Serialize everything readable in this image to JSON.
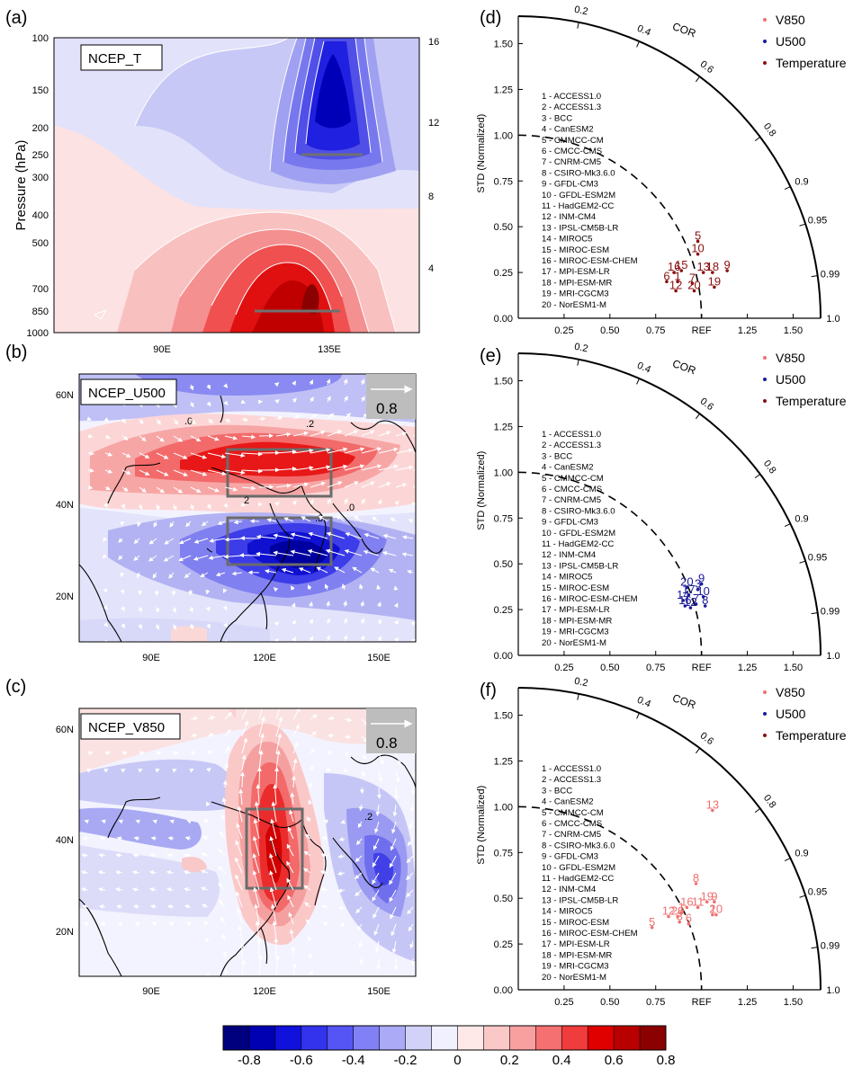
{
  "maps": [
    {
      "id": "a",
      "panel_label": "(a)",
      "label": "NCEP_T",
      "ylabel": "Pressure (hPa)",
      "xticks": [
        "90E",
        "135E"
      ],
      "yticks_left": [
        "100",
        "150",
        "200",
        "250",
        "300",
        "400",
        "500",
        "700",
        "850",
        "1000"
      ],
      "yticks_right": [
        "16",
        "12",
        "8",
        "4"
      ]
    },
    {
      "id": "b",
      "panel_label": "(b)",
      "label": "NCEP_U500",
      "ref_vector": "0.8",
      "xticks": [
        "90E",
        "120E",
        "150E"
      ],
      "yticks": [
        "60N",
        "40N",
        "20N"
      ],
      "contour_labels": [
        ".0",
        ".2",
        ".2",
        ".3",
        ".0"
      ]
    },
    {
      "id": "c",
      "panel_label": "(c)",
      "label": "NCEP_V850",
      "ref_vector": "0.8",
      "xticks": [
        "90E",
        "120E",
        "150E"
      ],
      "yticks": [
        "60N",
        "40N",
        "20N"
      ],
      "contour_labels": [
        ".2"
      ]
    }
  ],
  "chart_data": [
    {
      "type": "scatter",
      "id": "d",
      "panel_label": "(d)",
      "subtype": "taylor",
      "ylabel": "STD (Normalized)",
      "cor_label": "COR",
      "yticks": [
        "0.00",
        "0.25",
        "0.50",
        "0.75",
        "1.00",
        "1.25",
        "1.50"
      ],
      "xticks": [
        "0.25",
        "0.50",
        "0.75",
        "REF",
        "1.25",
        "1.50"
      ],
      "cor_ticks": [
        "0.2",
        "0.4",
        "0.6",
        "0.8",
        "0.9",
        "0.95",
        "0.99",
        "1.0"
      ],
      "legend": [
        "V850",
        "U500",
        "Temperature"
      ],
      "legend_colors": [
        "#f07070",
        "#1a1a9a",
        "#8b1010"
      ],
      "models": [
        "1 - ACCESS1.0",
        "2 - ACCESS1.3",
        "3 - BCC",
        "4 - CanESM2",
        "5 - CMMCC-CM",
        "6 - CMCC-CMS",
        "7 - CNRM-CM5",
        "8 - CSIRO-Mk3.6.0",
        "9 - GFDL-CM3",
        "10 - GFDL-ESM2M",
        "11 - HadGEM2-CC",
        "12 - INM-CM4",
        "13 - IPSL-CM5B-LR",
        "14 - MIROC5",
        "15 - MIROC-ESM",
        "16 - MIROC-ESM-CHEM",
        "17 - MPI-ESM-LR",
        "18 - MPI-ESM-MR",
        "19 - MRI-CGCM3",
        "20 - NorESM1-M"
      ],
      "series": [
        {
          "name": "Temperature",
          "color": "#8b1010",
          "points": [
            {
              "label": "5",
              "x": 0.98,
              "y": 0.42
            },
            {
              "label": "10",
              "x": 0.98,
              "y": 0.35
            },
            {
              "label": "15",
              "x": 0.89,
              "y": 0.26
            },
            {
              "label": "16",
              "x": 0.85,
              "y": 0.25
            },
            {
              "label": "13",
              "x": 1.01,
              "y": 0.25
            },
            {
              "label": "18",
              "x": 1.06,
              "y": 0.25
            },
            {
              "label": "9",
              "x": 1.14,
              "y": 0.26
            },
            {
              "label": "6",
              "x": 0.81,
              "y": 0.2
            },
            {
              "label": "1",
              "x": 0.87,
              "y": 0.2
            },
            {
              "label": "7",
              "x": 0.95,
              "y": 0.19
            },
            {
              "label": "12",
              "x": 0.86,
              "y": 0.15
            },
            {
              "label": "20",
              "x": 0.96,
              "y": 0.15
            },
            {
              "label": "19",
              "x": 1.07,
              "y": 0.17
            }
          ]
        }
      ]
    },
    {
      "type": "scatter",
      "id": "e",
      "panel_label": "(e)",
      "subtype": "taylor",
      "ylabel": "STD (Normalized)",
      "cor_label": "COR",
      "yticks": [
        "0.00",
        "0.25",
        "0.50",
        "0.75",
        "1.00",
        "1.25",
        "1.50"
      ],
      "xticks": [
        "0.25",
        "0.50",
        "0.75",
        "REF",
        "1.25",
        "1.50"
      ],
      "cor_ticks": [
        "0.2",
        "0.4",
        "0.6",
        "0.8",
        "0.9",
        "0.95",
        "0.99",
        "1.0"
      ],
      "legend": [
        "V850",
        "U500",
        "Temperature"
      ],
      "legend_colors": [
        "#f07070",
        "#1a1a9a",
        "#8b1010"
      ],
      "models": [
        "1 - ACCESS1.0",
        "2 - ACCESS1.3",
        "3 - BCC",
        "4 - CanESM2",
        "5 - CMMCC-CM",
        "6 - CMCC-CMS",
        "7 - CNRM-CM5",
        "8 - CSIRO-Mk3.6.0",
        "9 - GFDL-CM3",
        "10 - GFDL-ESM2M",
        "11 - HadGEM2-CC",
        "12 - INM-CM4",
        "13 - IPSL-CM5B-LR",
        "14 - MIROC5",
        "15 - MIROC-ESM",
        "16 - MIROC-ESM-CHEM",
        "17 - MPI-ESM-LR",
        "18 - MPI-ESM-MR",
        "19 - MRI-CGCM3",
        "20 - NorESM1-M"
      ],
      "series": [
        {
          "name": "U500",
          "color": "#1a1a9a",
          "points": [
            {
              "label": "9",
              "x": 1.0,
              "y": 0.39
            },
            {
              "label": "20",
              "x": 0.92,
              "y": 0.37
            },
            {
              "label": "3",
              "x": 0.98,
              "y": 0.36
            },
            {
              "label": "17",
              "x": 0.93,
              "y": 0.33
            },
            {
              "label": "10",
              "x": 1.01,
              "y": 0.32
            },
            {
              "label": "14",
              "x": 0.9,
              "y": 0.3
            },
            {
              "label": "7",
              "x": 0.97,
              "y": 0.28
            },
            {
              "label": "8",
              "x": 1.02,
              "y": 0.27
            },
            {
              "label": "16",
              "x": 0.91,
              "y": 0.27
            },
            {
              "label": "12",
              "x": 0.94,
              "y": 0.26
            }
          ]
        }
      ]
    },
    {
      "type": "scatter",
      "id": "f",
      "panel_label": "(f)",
      "subtype": "taylor",
      "ylabel": "STD (Normalized)",
      "cor_label": "COR",
      "yticks": [
        "0.00",
        "0.25",
        "0.50",
        "0.75",
        "1.00",
        "1.25",
        "1.50"
      ],
      "xticks": [
        "0.25",
        "0.50",
        "0.75",
        "REF",
        "1.25",
        "1.50"
      ],
      "cor_ticks": [
        "0.2",
        "0.4",
        "0.6",
        "0.8",
        "0.9",
        "0.95",
        "0.99",
        "1.0"
      ],
      "legend": [
        "V850",
        "U500",
        "Temperature"
      ],
      "legend_colors": [
        "#f07070",
        "#1a1a9a",
        "#8b1010"
      ],
      "models": [
        "1 - ACCESS1.0",
        "2 - ACCESS1.3",
        "3 - BCC",
        "4 - CanESM2",
        "5 - CMMCC-CM",
        "6 - CMCC-CMS",
        "7 - CNRM-CM5",
        "8 - CSIRO-Mk3.6.0",
        "9 - GFDL-CM3",
        "10 - GFDL-ESM2M",
        "11 - HadGEM2-CC",
        "12 - INM-CM4",
        "13 - IPSL-CM5B-LR",
        "14 - MIROC5",
        "15 - MIROC-ESM",
        "16 - MIROC-ESM-CHEM",
        "17 - MPI-ESM-LR",
        "18 - MPI-ESM-MR",
        "19 - MRI-CGCM3",
        "20 - NorESM1-M"
      ],
      "series": [
        {
          "name": "V850",
          "color": "#f07070",
          "points": [
            {
              "label": "13",
              "x": 1.06,
              "y": 0.98
            },
            {
              "label": "8",
              "x": 0.97,
              "y": 0.58
            },
            {
              "label": "19",
              "x": 1.03,
              "y": 0.48
            },
            {
              "label": "9",
              "x": 1.07,
              "y": 0.48
            },
            {
              "label": "16",
              "x": 0.92,
              "y": 0.45
            },
            {
              "label": "11",
              "x": 0.98,
              "y": 0.45
            },
            {
              "label": "1",
              "x": 0.89,
              "y": 0.42
            },
            {
              "label": "2",
              "x": 1.06,
              "y": 0.41
            },
            {
              "label": "12",
              "x": 0.82,
              "y": 0.4
            },
            {
              "label": "20",
              "x": 0.87,
              "y": 0.4
            },
            {
              "label": "10",
              "x": 1.08,
              "y": 0.41
            },
            {
              "label": "3",
              "x": 0.88,
              "y": 0.37
            },
            {
              "label": "6",
              "x": 0.93,
              "y": 0.36
            },
            {
              "label": "5",
              "x": 0.73,
              "y": 0.34
            }
          ]
        }
      ]
    }
  ],
  "colorbar": {
    "labels": [
      "-0.8",
      "-0.6",
      "-0.4",
      "-0.2",
      "0",
      "0.2",
      "0.4",
      "0.6",
      "0.8"
    ],
    "colors": [
      "#00007f",
      "#0000b3",
      "#1111dd",
      "#3333ee",
      "#5555f5",
      "#8181f5",
      "#aaaaf7",
      "#d2d2f9",
      "#f0f0ff",
      "#ffe8e8",
      "#fbc8c8",
      "#f8a0a0",
      "#f57070",
      "#f03c3c",
      "#e00000",
      "#b80000",
      "#8b0000"
    ]
  }
}
